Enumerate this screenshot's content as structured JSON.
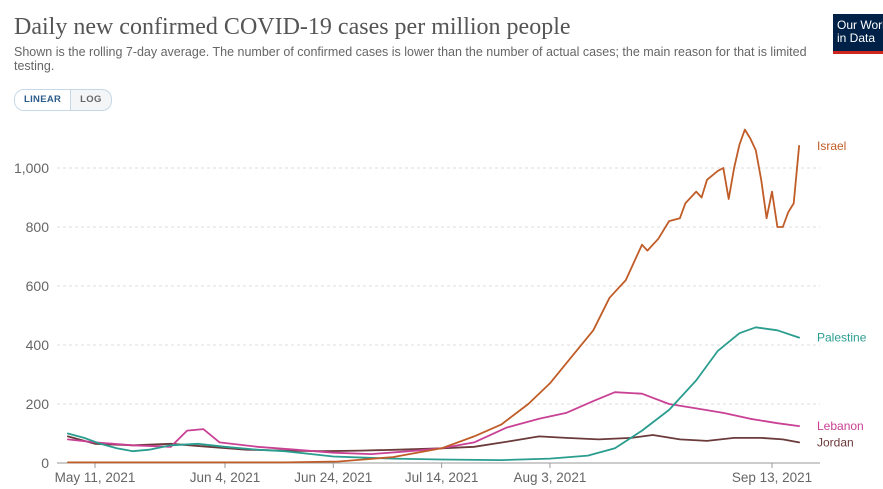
{
  "header": {
    "title": "Daily new confirmed COVID-19 cases per million people",
    "subtitle": "Shown is the rolling 7-day average. The number of confirmed cases is lower than the number of actual cases; the main reason for that is limited testing.",
    "logo_line1": "Our World",
    "logo_line2": "in Data"
  },
  "controls": {
    "linear_label": "LINEAR",
    "log_label": "LOG",
    "active": "linear"
  },
  "colors": {
    "israel": "#c05c27",
    "palestine": "#2a9d8f",
    "lebanon": "#c94195",
    "jordan": "#6b3a3a",
    "grid": "#dddddd",
    "axis_text": "#666666"
  },
  "chart_data": {
    "type": "line",
    "title": "Daily new confirmed COVID-19 cases per million people",
    "ylim": [
      0,
      1150
    ],
    "xlim": [
      "2021-05-06",
      "2021-09-14"
    ],
    "y_ticks": [
      0,
      200,
      400,
      600,
      800,
      1000
    ],
    "y_tick_labels": [
      "0",
      "200",
      "400",
      "600",
      "800",
      "1,000"
    ],
    "x_ticks": [
      "2021-05-11",
      "2021-06-04",
      "2021-06-24",
      "2021-07-14",
      "2021-08-03",
      "2021-09-13"
    ],
    "x_tick_labels": [
      "May 11, 2021",
      "Jun 4, 2021",
      "Jun 24, 2021",
      "Jul 14, 2021",
      "Aug 3, 2021",
      "Sep 13, 2021"
    ],
    "grid": true,
    "legend": "right, labels at line ends",
    "series": [
      {
        "name": "Israel",
        "color_key": "israel",
        "points": [
          [
            "2021-05-06",
            2
          ],
          [
            "2021-06-15",
            2
          ],
          [
            "2021-06-25",
            5
          ],
          [
            "2021-07-05",
            20
          ],
          [
            "2021-07-14",
            50
          ],
          [
            "2021-07-20",
            90
          ],
          [
            "2021-07-25",
            130
          ],
          [
            "2021-07-30",
            200
          ],
          [
            "2021-08-03",
            270
          ],
          [
            "2021-08-07",
            360
          ],
          [
            "2021-08-11",
            450
          ],
          [
            "2021-08-14",
            560
          ],
          [
            "2021-08-17",
            620
          ],
          [
            "2021-08-19",
            700
          ],
          [
            "2021-08-20",
            740
          ],
          [
            "2021-08-21",
            720
          ],
          [
            "2021-08-23",
            760
          ],
          [
            "2021-08-25",
            820
          ],
          [
            "2021-08-27",
            830
          ],
          [
            "2021-08-28",
            880
          ],
          [
            "2021-08-30",
            920
          ],
          [
            "2021-08-31",
            900
          ],
          [
            "2021-09-01",
            960
          ],
          [
            "2021-09-03",
            990
          ],
          [
            "2021-09-04",
            1000
          ],
          [
            "2021-09-05",
            895
          ],
          [
            "2021-09-06",
            1000
          ],
          [
            "2021-09-07",
            1080
          ],
          [
            "2021-09-08",
            1130
          ],
          [
            "2021-09-09",
            1100
          ],
          [
            "2021-09-10",
            1060
          ],
          [
            "2021-09-11",
            960
          ],
          [
            "2021-09-12",
            830
          ],
          [
            "2021-09-13",
            920
          ],
          [
            "2021-09-14",
            800
          ],
          [
            "2021-09-15",
            800
          ],
          [
            "2021-09-16",
            850
          ],
          [
            "2021-09-17",
            880
          ],
          [
            "2021-09-18",
            1075
          ]
        ]
      },
      {
        "name": "Palestine",
        "color_key": "palestine",
        "points": [
          [
            "2021-05-06",
            100
          ],
          [
            "2021-05-09",
            85
          ],
          [
            "2021-05-12",
            65
          ],
          [
            "2021-05-15",
            50
          ],
          [
            "2021-05-18",
            40
          ],
          [
            "2021-05-21",
            45
          ],
          [
            "2021-05-25",
            60
          ],
          [
            "2021-05-30",
            65
          ],
          [
            "2021-06-04",
            55
          ],
          [
            "2021-06-10",
            45
          ],
          [
            "2021-06-15",
            40
          ],
          [
            "2021-06-20",
            30
          ],
          [
            "2021-06-24",
            22
          ],
          [
            "2021-06-30",
            18
          ],
          [
            "2021-07-05",
            15
          ],
          [
            "2021-07-14",
            12
          ],
          [
            "2021-07-25",
            10
          ],
          [
            "2021-08-03",
            15
          ],
          [
            "2021-08-10",
            25
          ],
          [
            "2021-08-15",
            50
          ],
          [
            "2021-08-20",
            110
          ],
          [
            "2021-08-25",
            180
          ],
          [
            "2021-08-30",
            280
          ],
          [
            "2021-09-03",
            380
          ],
          [
            "2021-09-07",
            440
          ],
          [
            "2021-09-10",
            460
          ],
          [
            "2021-09-14",
            450
          ],
          [
            "2021-09-18",
            425
          ]
        ]
      },
      {
        "name": "Lebanon",
        "color_key": "lebanon",
        "points": [
          [
            "2021-05-06",
            80
          ],
          [
            "2021-05-11",
            70
          ],
          [
            "2021-05-18",
            60
          ],
          [
            "2021-05-25",
            55
          ],
          [
            "2021-05-28",
            110
          ],
          [
            "2021-05-31",
            115
          ],
          [
            "2021-06-03",
            70
          ],
          [
            "2021-06-10",
            55
          ],
          [
            "2021-06-17",
            45
          ],
          [
            "2021-06-24",
            35
          ],
          [
            "2021-07-01",
            30
          ],
          [
            "2021-07-08",
            40
          ],
          [
            "2021-07-14",
            50
          ],
          [
            "2021-07-20",
            70
          ],
          [
            "2021-07-26",
            120
          ],
          [
            "2021-08-01",
            150
          ],
          [
            "2021-08-06",
            170
          ],
          [
            "2021-08-11",
            210
          ],
          [
            "2021-08-15",
            240
          ],
          [
            "2021-08-20",
            235
          ],
          [
            "2021-08-25",
            200
          ],
          [
            "2021-08-30",
            185
          ],
          [
            "2021-09-04",
            170
          ],
          [
            "2021-09-09",
            150
          ],
          [
            "2021-09-14",
            135
          ],
          [
            "2021-09-18",
            125
          ]
        ]
      },
      {
        "name": "Jordan",
        "color_key": "jordan",
        "points": [
          [
            "2021-05-06",
            90
          ],
          [
            "2021-05-11",
            65
          ],
          [
            "2021-05-18",
            60
          ],
          [
            "2021-05-25",
            65
          ],
          [
            "2021-06-01",
            55
          ],
          [
            "2021-06-08",
            45
          ],
          [
            "2021-06-15",
            42
          ],
          [
            "2021-06-22",
            40
          ],
          [
            "2021-06-29",
            42
          ],
          [
            "2021-07-06",
            45
          ],
          [
            "2021-07-14",
            50
          ],
          [
            "2021-07-20",
            55
          ],
          [
            "2021-07-27",
            75
          ],
          [
            "2021-08-01",
            90
          ],
          [
            "2021-08-06",
            85
          ],
          [
            "2021-08-12",
            80
          ],
          [
            "2021-08-18",
            85
          ],
          [
            "2021-08-22",
            95
          ],
          [
            "2021-08-27",
            80
          ],
          [
            "2021-09-01",
            75
          ],
          [
            "2021-09-06",
            85
          ],
          [
            "2021-09-11",
            85
          ],
          [
            "2021-09-15",
            80
          ],
          [
            "2021-09-18",
            70
          ]
        ]
      }
    ]
  }
}
